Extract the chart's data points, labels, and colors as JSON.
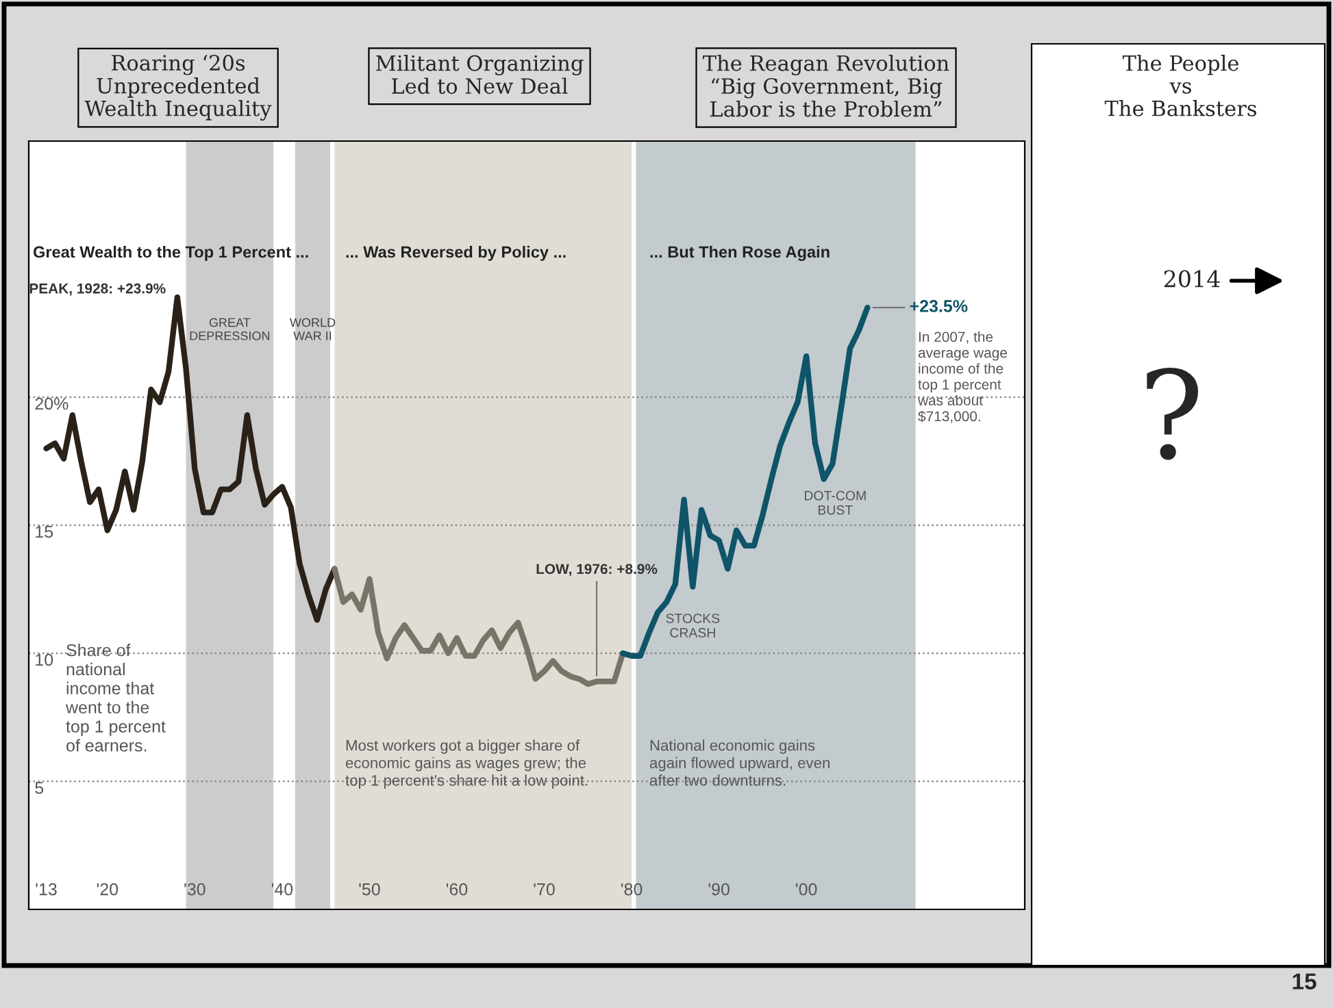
{
  "chart_data": {
    "type": "line",
    "ylabel": "Share of\nnational\nincome that\nwent to the\ntop 1 percent\nof earners.",
    "series": [
      {
        "color": "#2a2118",
        "x": [
          1913,
          1914,
          1915,
          1916,
          1917,
          1918,
          1919,
          1920,
          1921,
          1922,
          1923,
          1924,
          1925,
          1926,
          1927,
          1928,
          1929,
          1930,
          1931,
          1932,
          1933,
          1934,
          1935,
          1936,
          1937,
          1938,
          1939,
          1940,
          1941,
          1942,
          1943,
          1944,
          1945,
          1946
        ],
        "values": [
          18.0,
          18.2,
          17.6,
          19.3,
          17.5,
          15.9,
          16.4,
          14.8,
          15.6,
          17.1,
          15.6,
          17.5,
          20.3,
          19.8,
          21.0,
          23.9,
          21.1,
          17.2,
          15.5,
          15.5,
          16.4,
          16.4,
          16.7,
          19.3,
          17.2,
          15.8,
          16.2,
          16.5,
          15.7,
          13.5,
          12.3,
          11.3,
          12.5,
          13.3
        ]
      },
      {
        "color": "#7a7468",
        "x": [
          1946,
          1947,
          1948,
          1949,
          1950,
          1951,
          1952,
          1953,
          1954,
          1955,
          1956,
          1957,
          1958,
          1959,
          1960,
          1961,
          1962,
          1963,
          1964,
          1965,
          1966,
          1967,
          1968,
          1969,
          1970,
          1971,
          1972,
          1973,
          1974,
          1975,
          1976,
          1977,
          1978,
          1979
        ],
        "values": [
          13.3,
          12.0,
          12.3,
          11.7,
          12.9,
          10.8,
          9.8,
          10.6,
          11.1,
          10.6,
          10.1,
          10.1,
          10.7,
          10.0,
          10.6,
          9.9,
          9.9,
          10.5,
          10.9,
          10.2,
          10.8,
          11.2,
          10.2,
          9.0,
          9.3,
          9.7,
          9.3,
          9.1,
          9.0,
          8.8,
          8.9,
          8.9,
          8.9,
          10.0
        ]
      },
      {
        "color": "#0f5468",
        "x": [
          1979,
          1980,
          1981,
          1982,
          1983,
          1984,
          1985,
          1986,
          1987,
          1988,
          1989,
          1990,
          1991,
          1992,
          1993,
          1994,
          1995,
          1996,
          1997,
          1998,
          1999,
          2000,
          2001,
          2002,
          2003,
          2004,
          2005,
          2006,
          2007
        ],
        "values": [
          10.0,
          9.9,
          9.9,
          10.8,
          11.6,
          12.0,
          12.7,
          16.0,
          12.6,
          15.6,
          14.6,
          14.4,
          13.3,
          14.8,
          14.2,
          14.2,
          15.4,
          16.8,
          18.1,
          19.0,
          19.8,
          21.6,
          18.2,
          16.8,
          17.4,
          19.6,
          21.9,
          22.6,
          23.5
        ]
      }
    ],
    "xlim": [
      1911,
      2025
    ],
    "ylim": [
      0,
      30
    ],
    "xticks": [
      {
        "value": 1913,
        "label": "'13"
      },
      {
        "value": 1920,
        "label": "'20"
      },
      {
        "value": 1930,
        "label": "'30"
      },
      {
        "value": 1940,
        "label": "'40"
      },
      {
        "value": 1950,
        "label": "'50"
      },
      {
        "value": 1960,
        "label": "'60"
      },
      {
        "value": 1970,
        "label": "'70"
      },
      {
        "value": 1980,
        "label": "'80"
      },
      {
        "value": 1990,
        "label": "'90"
      },
      {
        "value": 2000,
        "label": "'00"
      }
    ],
    "yticks": [
      5,
      10,
      15,
      {
        "value": 20,
        "label": "20%"
      }
    ],
    "grid": "y",
    "bands": [
      {
        "axis": "x",
        "from": 1946,
        "to": 1980,
        "label": null,
        "color": "#e0ddd5"
      },
      {
        "axis": "x",
        "from": 1980.5,
        "to": 2012.5,
        "label": null,
        "color": "#c3cbcf"
      },
      {
        "axis": "x",
        "from": 1929,
        "to": 1939,
        "label": "GREAT\nDEPRESSION",
        "color": "#cccccc"
      },
      {
        "axis": "x",
        "from": 1941.5,
        "to": 1945.5,
        "label": "WORLD\nWAR II",
        "color": "#cccccc"
      }
    ],
    "annotations": [
      "Roaring ‘20s\nUnprecedented\nWealth Inequality",
      "Militant Organizing\nLed to New Deal",
      "The Reagan Revolution\n“Big Government, Big\nLabor is the Problem”",
      "The People\nvs\nThe Banksters",
      "Great Wealth to the Top 1 Percent ...",
      "... Was Reversed by Policy ...",
      "... But Then Rose Again",
      {
        "text": "PEAK, 1928: +23.9%",
        "x": 1928,
        "y": 23.9
      },
      {
        "text": "LOW, 1976: +8.9%",
        "x": 1976,
        "y": 8.9
      },
      {
        "text": "+23.5%",
        "x": 2007,
        "y": 23.5
      },
      "In 2007, the\naverage wage\nincome of the\ntop 1 percent\nwas about\n$713,000.",
      {
        "text": "STOCKS\nCRASH",
        "x": 1987,
        "y": 12.6
      },
      {
        "text": "DOT-COM\nBUST",
        "x": 2002,
        "y": 16.8
      },
      "Most workers got a bigger share of\neconomic gains as wages grew; the\ntop 1 percent's share hit a low point.",
      "National economic gains\nagain flowed upward, even\nafter two downturns.",
      "2014",
      "?",
      "15"
    ]
  }
}
